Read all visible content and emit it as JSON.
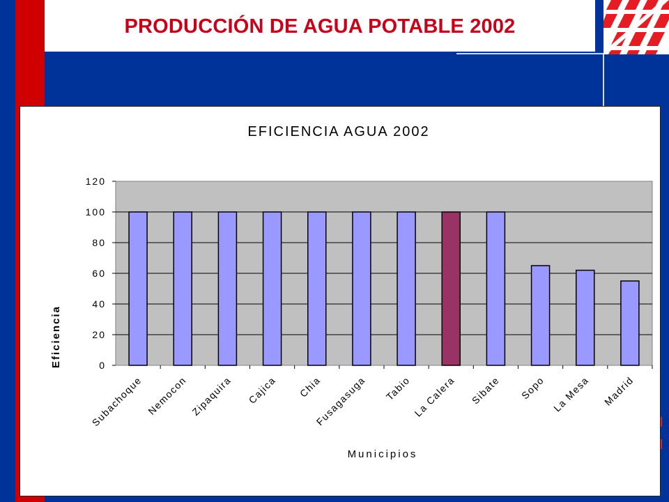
{
  "slide": {
    "title": "PRODUCCIÓN DE AGUA POTABLE 2002"
  },
  "logo": {
    "icon": "red-lattice-logo"
  },
  "colors": {
    "background": "#003399",
    "accent_red": "#d10000",
    "title_red": "#c8001a",
    "bar_default": "#9999ff",
    "bar_highlight": "#993366",
    "plot_area": "#c0c0c0"
  },
  "chart_data": {
    "type": "bar",
    "title": "EFICIENCIA AGUA 2002",
    "xlabel": "Municipios",
    "ylabel": "Eficiencia",
    "ylim": [
      0,
      120
    ],
    "yticks": [
      "0",
      "20",
      "40",
      "60",
      "80",
      "100",
      "120"
    ],
    "grid": true,
    "legend": "none",
    "categories": [
      "Subachoque",
      "Nemocon",
      "Zipaquira",
      "Cajica",
      "Chia",
      "Fusagasuga",
      "Tabio",
      "La Calera",
      "Sibate",
      "Sopo",
      "La Mesa",
      "Madrid"
    ],
    "values": [
      100,
      100,
      100,
      100,
      100,
      100,
      100,
      100,
      100,
      65,
      62,
      55
    ],
    "highlight_category": "La Calera"
  }
}
